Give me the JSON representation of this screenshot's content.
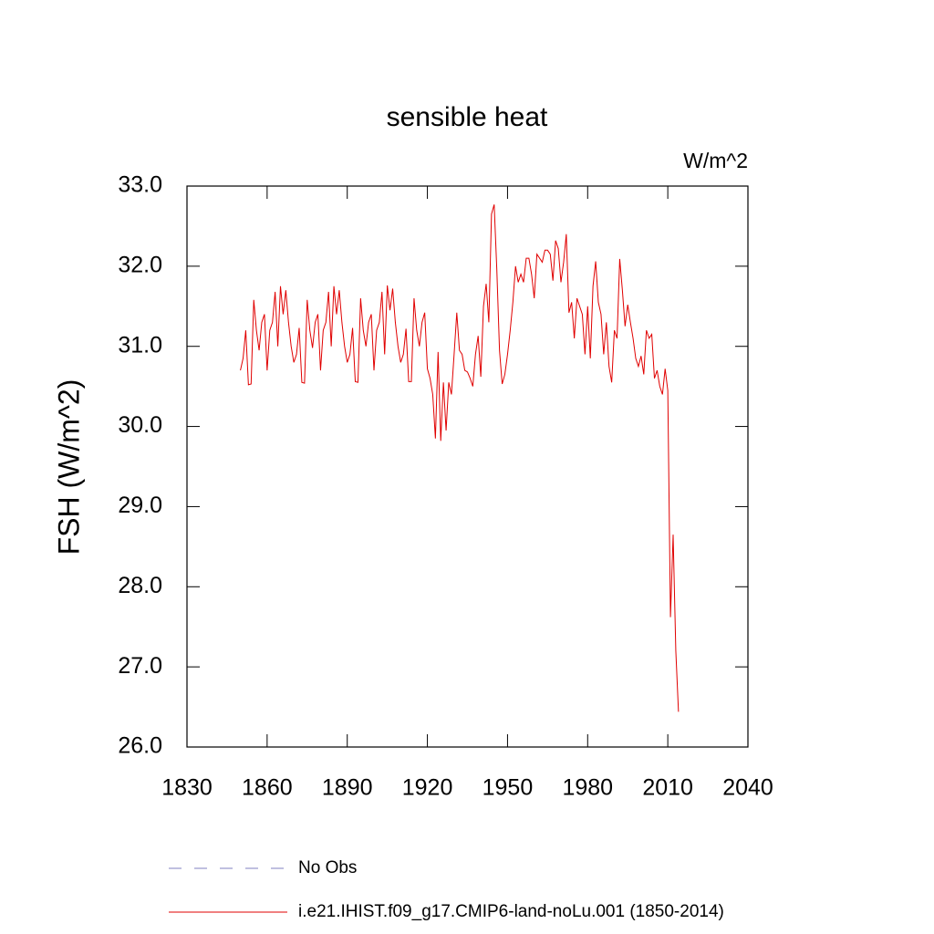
{
  "chart_data": {
    "type": "line",
    "title": "sensible heat",
    "units": "W/m^2",
    "y_label": "FSH  (W/m^2)",
    "xlim": [
      1830,
      2040
    ],
    "xticks": [
      1830,
      1860,
      1890,
      1920,
      1950,
      1980,
      2010,
      2040
    ],
    "ylim": [
      26,
      33
    ],
    "yticks": [
      {
        "value": 26,
        "label": "26.0"
      },
      {
        "value": 27,
        "label": "27.0"
      },
      {
        "value": 28,
        "label": "28.0"
      },
      {
        "value": 29,
        "label": "29.0"
      },
      {
        "value": 30,
        "label": "30.0"
      },
      {
        "value": 31,
        "label": "31.0"
      },
      {
        "value": 32,
        "label": "32.0"
      },
      {
        "value": 33,
        "label": "33.0"
      }
    ],
    "legend": [
      {
        "name": "No Obs",
        "color": "#8080c0",
        "style": "dashed"
      }
    ],
    "x": [
      1850,
      1851,
      1852,
      1853,
      1854,
      1855,
      1856,
      1857,
      1858,
      1859,
      1860,
      1861,
      1862,
      1863,
      1864,
      1865,
      1866,
      1867,
      1868,
      1869,
      1870,
      1871,
      1872,
      1873,
      1874,
      1875,
      1876,
      1877,
      1878,
      1879,
      1880,
      1881,
      1882,
      1883,
      1884,
      1885,
      1886,
      1887,
      1888,
      1889,
      1890,
      1891,
      1892,
      1893,
      1894,
      1895,
      1896,
      1897,
      1898,
      1899,
      1900,
      1901,
      1902,
      1903,
      1904,
      1905,
      1906,
      1907,
      1908,
      1909,
      1910,
      1911,
      1912,
      1913,
      1914,
      1915,
      1916,
      1917,
      1918,
      1919,
      1920,
      1921,
      1922,
      1923,
      1924,
      1925,
      1926,
      1927,
      1928,
      1929,
      1930,
      1931,
      1932,
      1933,
      1934,
      1935,
      1936,
      1937,
      1938,
      1939,
      1940,
      1941,
      1942,
      1943,
      1944,
      1945,
      1946,
      1947,
      1948,
      1949,
      1950,
      1951,
      1952,
      1953,
      1954,
      1955,
      1956,
      1957,
      1958,
      1959,
      1960,
      1961,
      1962,
      1963,
      1964,
      1965,
      1966,
      1967,
      1968,
      1969,
      1970,
      1971,
      1972,
      1973,
      1974,
      1975,
      1976,
      1977,
      1978,
      1979,
      1980,
      1981,
      1982,
      1983,
      1984,
      1985,
      1986,
      1987,
      1988,
      1989,
      1990,
      1991,
      1992,
      1993,
      1994,
      1995,
      1996,
      1997,
      1998,
      1999,
      2000,
      2001,
      2002,
      2003,
      2004,
      2005,
      2006,
      2007,
      2008,
      2009,
      2010,
      2011,
      2012,
      2013,
      2014
    ],
    "series": [
      {
        "name": "i.e21.IHIST.f09_g17.CMIP6-land-noLu.001 (1850-2014)",
        "color": "#e00000",
        "values": [
          30.7,
          30.85,
          31.2,
          30.52,
          30.53,
          31.58,
          31.2,
          30.95,
          31.3,
          31.4,
          30.7,
          31.2,
          31.3,
          31.68,
          31.0,
          31.75,
          31.4,
          31.7,
          31.3,
          31.0,
          30.8,
          30.9,
          31.23,
          30.55,
          30.54,
          31.58,
          31.2,
          30.98,
          31.3,
          31.4,
          30.7,
          31.2,
          31.3,
          31.68,
          31.0,
          31.75,
          31.4,
          31.7,
          31.3,
          31.0,
          30.8,
          30.9,
          31.23,
          30.56,
          30.55,
          31.6,
          31.2,
          31.0,
          31.3,
          31.4,
          30.7,
          31.2,
          31.3,
          31.68,
          30.9,
          31.76,
          31.45,
          31.72,
          31.3,
          31.0,
          30.8,
          30.9,
          31.22,
          30.56,
          30.56,
          31.6,
          31.2,
          31.0,
          31.3,
          31.42,
          30.72,
          30.6,
          30.4,
          29.85,
          30.93,
          29.82,
          30.55,
          29.95,
          30.55,
          30.4,
          30.9,
          31.42,
          30.95,
          30.9,
          30.7,
          30.68,
          30.6,
          30.5,
          30.9,
          31.13,
          30.62,
          31.5,
          31.78,
          31.3,
          32.65,
          32.77,
          31.95,
          30.95,
          30.53,
          30.65,
          30.9,
          31.2,
          31.55,
          32.0,
          31.8,
          31.9,
          31.8,
          32.1,
          32.1,
          31.9,
          31.6,
          32.15,
          32.1,
          32.05,
          32.2,
          32.2,
          32.15,
          31.82,
          32.32,
          32.22,
          31.8,
          32.05,
          32.4,
          31.42,
          31.55,
          31.1,
          31.6,
          31.5,
          31.4,
          30.9,
          31.5,
          30.85,
          31.75,
          32.06,
          31.55,
          31.4,
          30.9,
          31.3,
          30.75,
          30.55,
          31.2,
          31.1,
          32.09,
          31.7,
          31.25,
          31.52,
          31.3,
          31.1,
          30.85,
          30.75,
          30.88,
          30.65,
          31.2,
          31.1,
          31.15,
          30.6,
          30.7,
          30.5,
          30.4,
          30.72,
          30.45,
          27.62,
          28.65,
          27.2,
          26.44
        ]
      }
    ]
  }
}
